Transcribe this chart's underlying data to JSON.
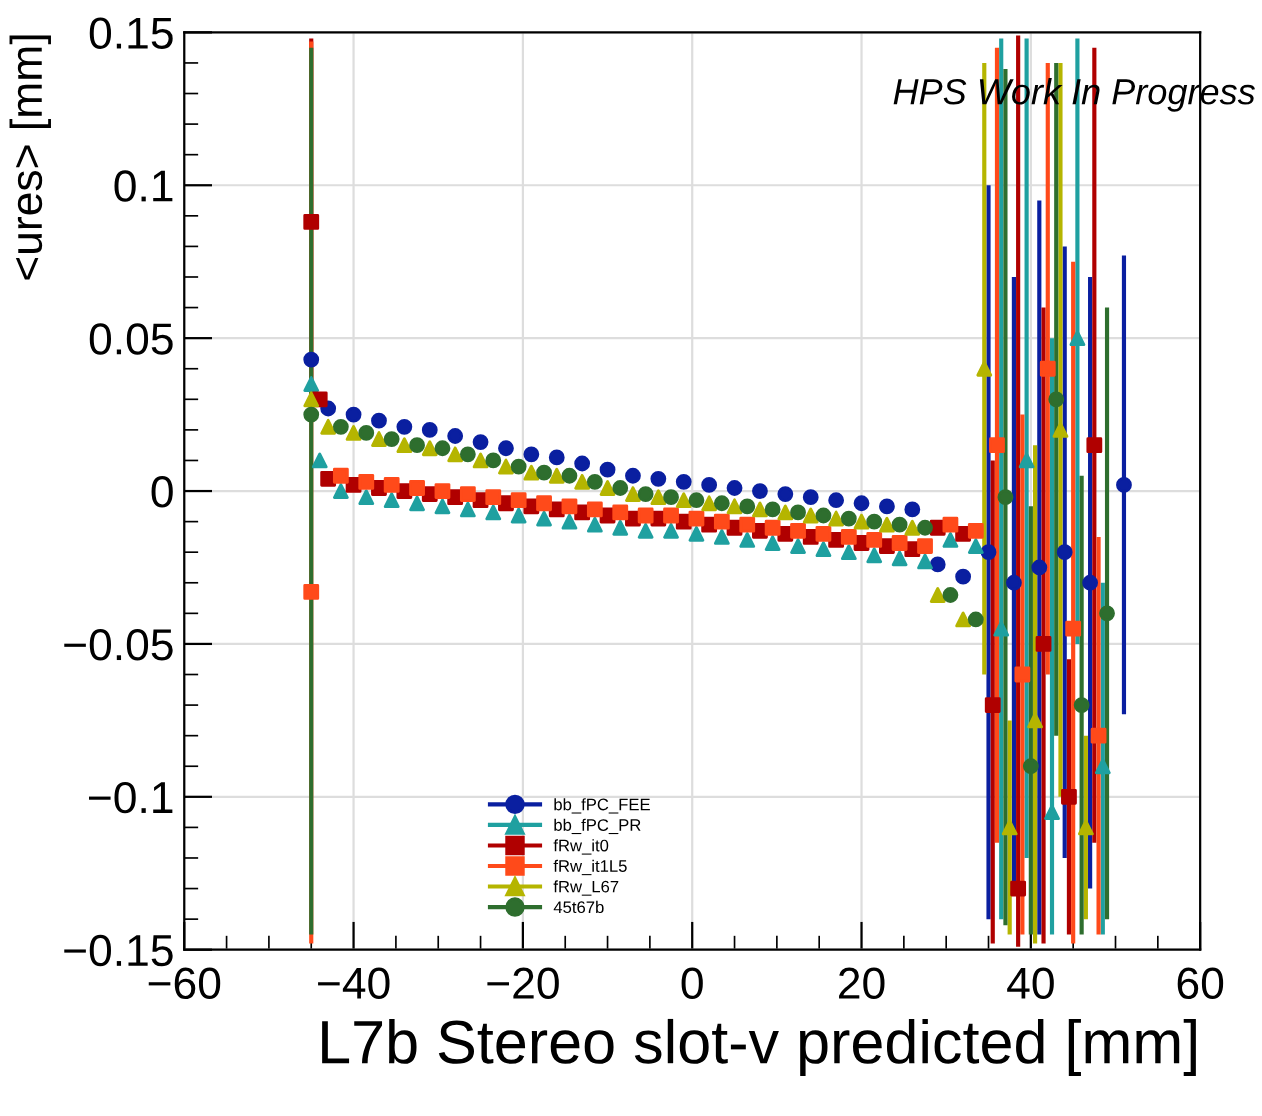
{
  "chart_data": {
    "type": "scatter",
    "xlabel": "L7b Stereo slot-v predicted [mm]",
    "ylabel": "<ures> [mm]",
    "annotations": [
      "HPS Work In Progress"
    ],
    "xlim": [
      -60,
      60
    ],
    "xticks": [
      {
        "value": -60,
        "label": "−60"
      },
      {
        "value": -40,
        "label": "−40"
      },
      {
        "value": -20,
        "label": "−20"
      },
      0,
      20,
      40,
      60
    ],
    "ylim": [
      -0.15,
      0.15
    ],
    "yticks": [
      {
        "value": -0.15,
        "label": "−0.15"
      },
      {
        "value": -0.1,
        "label": "−0.1"
      },
      {
        "value": -0.05,
        "label": "−0.05"
      },
      0,
      0.05,
      0.1,
      0.15
    ],
    "grid": true,
    "legend": "bottom",
    "series": [
      {
        "name": "bb_fPC_FEE",
        "color": "#0a1fa0",
        "marker": "circle",
        "x": [
          -45,
          -43,
          -40,
          -37,
          -34,
          -31,
          -28,
          -25,
          -22,
          -19,
          -16,
          -13,
          -10,
          -7,
          -4,
          -1,
          2,
          5,
          8,
          11,
          14,
          17,
          20,
          23,
          26,
          29,
          32,
          35,
          38,
          41,
          44,
          47,
          51
        ],
        "values": [
          0.043,
          0.027,
          0.025,
          0.023,
          0.021,
          0.02,
          0.018,
          0.016,
          0.014,
          0.012,
          0.011,
          0.009,
          0.007,
          0.005,
          0.004,
          0.003,
          0.002,
          0.001,
          0,
          -0.001,
          -0.002,
          -0.003,
          -0.004,
          -0.005,
          -0.006,
          -0.024,
          -0.028,
          -0.02,
          -0.03,
          -0.025,
          -0.02,
          -0.03,
          0.002
        ],
        "errors": [
          null,
          null,
          null,
          null,
          null,
          null,
          null,
          null,
          null,
          null,
          null,
          null,
          null,
          null,
          null,
          null,
          null,
          null,
          null,
          null,
          null,
          null,
          null,
          null,
          null,
          null,
          null,
          [
            -0.14,
            0.1
          ],
          [
            -0.13,
            0.07
          ],
          [
            -0.145,
            0.095
          ],
          [
            -0.12,
            0.08
          ],
          [
            -0.13,
            0.07
          ],
          [
            -0.073,
            0.077
          ]
        ]
      },
      {
        "name": "bb_fPC_PR",
        "color": "#1fa0a0",
        "marker": "triangle",
        "x": [
          -45,
          -44,
          -41.5,
          -38.5,
          -35.5,
          -32.5,
          -29.5,
          -26.5,
          -23.5,
          -20.5,
          -17.5,
          -14.5,
          -11.5,
          -8.5,
          -5.5,
          -2.5,
          0.5,
          3.5,
          6.5,
          9.5,
          12.5,
          15.5,
          18.5,
          21.5,
          24.5,
          27.5,
          30.5,
          33.5,
          36.5,
          39.5,
          42.5,
          45.5,
          48.5
        ],
        "values": [
          0.035,
          0.01,
          0,
          -0.002,
          -0.003,
          -0.004,
          -0.005,
          -0.006,
          -0.007,
          -0.008,
          -0.009,
          -0.01,
          -0.011,
          -0.012,
          -0.013,
          -0.013,
          -0.014,
          -0.015,
          -0.016,
          -0.017,
          -0.018,
          -0.019,
          -0.02,
          -0.021,
          -0.022,
          -0.023,
          -0.016,
          -0.018,
          -0.045,
          0.01,
          -0.105,
          0.05,
          -0.09
        ],
        "errors": [
          null,
          null,
          null,
          null,
          null,
          null,
          null,
          null,
          null,
          null,
          null,
          null,
          null,
          null,
          null,
          null,
          null,
          null,
          null,
          null,
          null,
          null,
          null,
          null,
          null,
          null,
          null,
          null,
          [
            -0.14,
            0.148
          ],
          [
            -0.12,
            0.148
          ],
          [
            -0.145,
            0.05
          ],
          [
            -0.05,
            0.148
          ],
          [
            -0.145,
            -0.03
          ]
        ]
      },
      {
        "name": "fRw_it0",
        "color": "#b00000",
        "marker": "square",
        "x": [
          -45,
          -44,
          -43,
          -40,
          -37,
          -34,
          -31,
          -28,
          -25,
          -22,
          -19,
          -16,
          -13,
          -10,
          -7,
          -4,
          -1,
          2,
          5,
          8,
          11,
          14,
          17,
          20,
          23,
          26,
          29,
          32,
          35.5,
          38.5,
          41.5,
          44.5,
          47.5
        ],
        "values": [
          0.088,
          0.03,
          0.004,
          0.002,
          0.001,
          0,
          -0.001,
          -0.002,
          -0.003,
          -0.004,
          -0.005,
          -0.006,
          -0.007,
          -0.008,
          -0.009,
          -0.009,
          -0.01,
          -0.011,
          -0.012,
          -0.013,
          -0.014,
          -0.015,
          -0.016,
          -0.017,
          -0.018,
          -0.019,
          -0.012,
          -0.014,
          -0.07,
          -0.13,
          -0.05,
          -0.1,
          0.015
        ],
        "errors": [
          [
            0.028,
            0.148
          ],
          null,
          null,
          null,
          null,
          null,
          null,
          null,
          null,
          null,
          null,
          null,
          null,
          null,
          null,
          null,
          null,
          null,
          null,
          null,
          null,
          null,
          null,
          null,
          null,
          null,
          null,
          null,
          [
            -0.148,
            0.01
          ],
          [
            -0.149,
            0.149
          ],
          [
            -0.148,
            0.06
          ],
          [
            -0.145,
            -0.055
          ],
          [
            -0.115,
            0.145
          ]
        ]
      },
      {
        "name": "fRw_it1L5",
        "color": "#ff4a1a",
        "marker": "square",
        "x": [
          -45,
          -41.5,
          -38.5,
          -35.5,
          -32.5,
          -29.5,
          -26.5,
          -23.5,
          -20.5,
          -17.5,
          -14.5,
          -11.5,
          -8.5,
          -5.5,
          -2.5,
          0.5,
          3.5,
          6.5,
          9.5,
          12.5,
          15.5,
          18.5,
          21.5,
          24.5,
          27.5,
          30.5,
          33.5,
          36,
          39,
          42,
          45,
          48
        ],
        "values": [
          -0.033,
          0.005,
          0.003,
          0.002,
          0.001,
          0,
          -0.001,
          -0.002,
          -0.003,
          -0.004,
          -0.005,
          -0.006,
          -0.007,
          -0.008,
          -0.008,
          -0.009,
          -0.01,
          -0.011,
          -0.012,
          -0.013,
          -0.014,
          -0.015,
          -0.016,
          -0.017,
          -0.018,
          -0.011,
          -0.013,
          0.015,
          -0.06,
          0.04,
          -0.045,
          -0.08
        ],
        "errors": [
          [
            -0.148,
            0.147
          ],
          null,
          null,
          null,
          null,
          null,
          null,
          null,
          null,
          null,
          null,
          null,
          null,
          null,
          null,
          null,
          null,
          null,
          null,
          null,
          null,
          null,
          null,
          null,
          null,
          null,
          null,
          [
            -0.115,
            0.145
          ],
          [
            -0.145,
            0.025
          ],
          [
            -0.06,
            0.14
          ],
          [
            -0.148,
            0.075
          ],
          [
            -0.145,
            -0.015
          ]
        ]
      },
      {
        "name": "fRw_L67",
        "color": "#b5b500",
        "marker": "triangle",
        "x": [
          -45,
          -43,
          -40,
          -37,
          -34,
          -31,
          -28,
          -25,
          -22,
          -19,
          -16,
          -13,
          -10,
          -7,
          -4,
          -1,
          2,
          5,
          8,
          11,
          14,
          17,
          20,
          23,
          26,
          29,
          32,
          34.5,
          37.5,
          40.5,
          43.5,
          46.5
        ],
        "values": [
          0.03,
          0.021,
          0.019,
          0.017,
          0.015,
          0.014,
          0.012,
          0.01,
          0.008,
          0.006,
          0.005,
          0.003,
          0.001,
          -0.001,
          -0.002,
          -0.003,
          -0.004,
          -0.005,
          -0.006,
          -0.007,
          -0.008,
          -0.009,
          -0.01,
          -0.011,
          -0.012,
          -0.034,
          -0.042,
          0.04,
          -0.11,
          -0.075,
          0.02,
          -0.11
        ],
        "errors": [
          null,
          null,
          null,
          null,
          null,
          null,
          null,
          null,
          null,
          null,
          null,
          null,
          null,
          null,
          null,
          null,
          null,
          null,
          null,
          null,
          null,
          null,
          null,
          null,
          null,
          null,
          null,
          [
            -0.06,
            0.14
          ],
          [
            -0.145,
            -0.075
          ],
          [
            -0.148,
            0.015
          ],
          [
            -0.1,
            0.14
          ],
          [
            -0.14,
            -0.08
          ]
        ]
      },
      {
        "name": "45t67b",
        "color": "#2e6e2e",
        "marker": "circle",
        "x": [
          -45,
          -41.5,
          -38.5,
          -35.5,
          -32.5,
          -29.5,
          -26.5,
          -23.5,
          -20.5,
          -17.5,
          -14.5,
          -11.5,
          -8.5,
          -5.5,
          -2.5,
          0.5,
          3.5,
          6.5,
          9.5,
          12.5,
          15.5,
          18.5,
          21.5,
          24.5,
          27.5,
          30.5,
          33.5,
          37,
          40,
          43,
          46,
          49
        ],
        "values": [
          0.025,
          0.021,
          0.019,
          0.017,
          0.015,
          0.014,
          0.012,
          0.01,
          0.008,
          0.006,
          0.005,
          0.003,
          0.001,
          -0.001,
          -0.002,
          -0.003,
          -0.004,
          -0.005,
          -0.006,
          -0.007,
          -0.008,
          -0.009,
          -0.01,
          -0.011,
          -0.012,
          -0.034,
          -0.042,
          -0.002,
          -0.09,
          0.03,
          -0.07,
          -0.04
        ],
        "errors": [
          [
            -0.145,
            0.145
          ],
          null,
          null,
          null,
          null,
          null,
          null,
          null,
          null,
          null,
          null,
          null,
          null,
          null,
          null,
          null,
          null,
          null,
          null,
          null,
          null,
          null,
          null,
          null,
          null,
          null,
          null,
          [
            -0.142,
            0.138
          ],
          [
            -0.145,
            -0.005
          ],
          [
            -0.08,
            0.14
          ],
          [
            -0.145,
            0.005
          ],
          [
            -0.14,
            0.06
          ]
        ]
      }
    ]
  }
}
